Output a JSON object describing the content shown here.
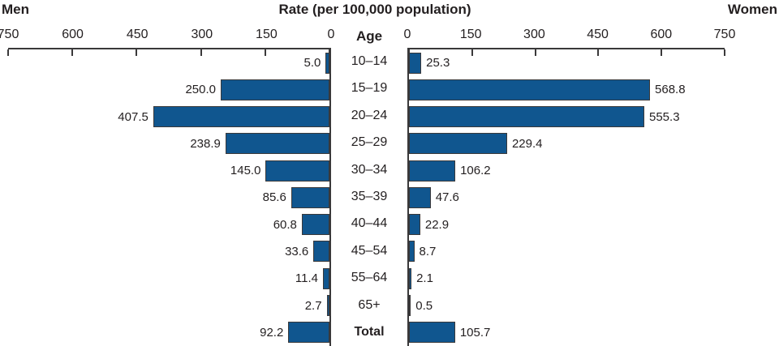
{
  "header": {
    "left": "Men",
    "title": "Rate (per 100,000 population)",
    "right": "Women"
  },
  "chart_data": {
    "type": "bar",
    "subtype": "population-pyramid-horizontal",
    "title": "Rate (per 100,000 population)",
    "left_series_label": "Men",
    "right_series_label": "Women",
    "age_label": "Age",
    "axis_max": 750,
    "ticks": [
      0,
      150,
      300,
      450,
      600,
      750
    ],
    "grid": false,
    "categories": [
      "10–14",
      "15–19",
      "20–24",
      "25–29",
      "30–34",
      "35–39",
      "40–44",
      "45–54",
      "55–64",
      "65+",
      "Total"
    ],
    "series": [
      {
        "name": "Men",
        "values": [
          5.0,
          250.0,
          407.5,
          238.9,
          145.0,
          85.6,
          60.8,
          33.6,
          11.4,
          2.7,
          92.2
        ]
      },
      {
        "name": "Women",
        "values": [
          25.3,
          568.8,
          555.3,
          229.4,
          106.2,
          47.6,
          22.9,
          8.7,
          2.1,
          0.5,
          105.7
        ]
      }
    ],
    "colors": {
      "bar_fill": "#10568F",
      "bar_border": "#3A393A",
      "axis": "#3A393A",
      "text": "#231F20"
    }
  }
}
